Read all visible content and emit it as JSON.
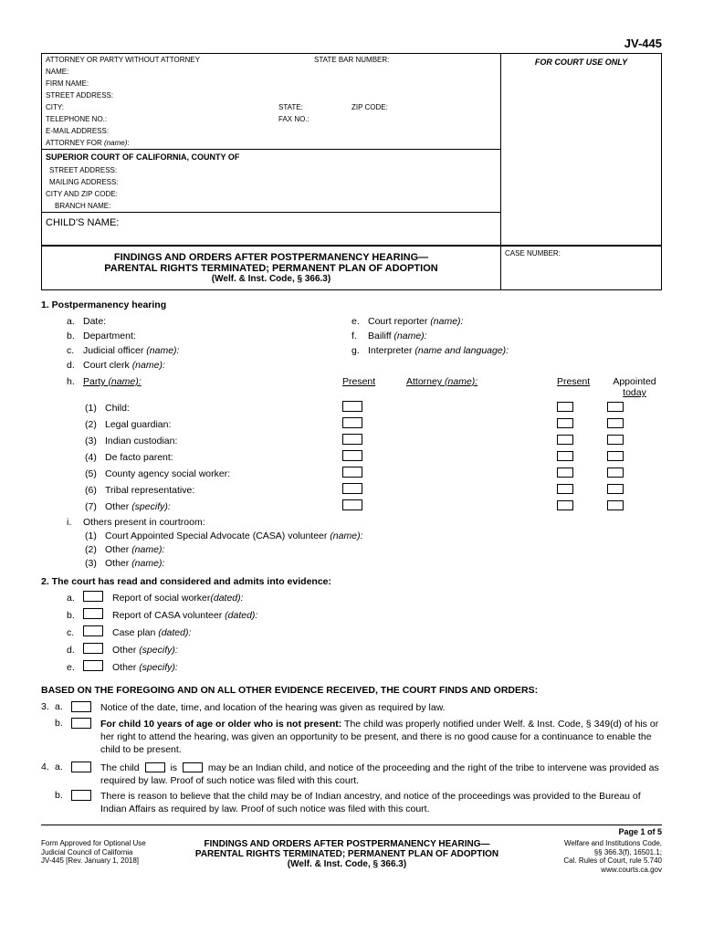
{
  "form_number": "JV-445",
  "header": {
    "attorney_line": "ATTORNEY OR PARTY WITHOUT ATTORNEY",
    "state_bar": "STATE BAR NUMBER:",
    "court_use": "FOR COURT USE ONLY",
    "name": "NAME:",
    "firm": "FIRM NAME:",
    "street": "STREET ADDRESS:",
    "city": "CITY:",
    "state": "STATE:",
    "zip": "ZIP CODE:",
    "tel": "TELEPHONE NO.:",
    "fax": "FAX NO.:",
    "email": "E-MAIL ADDRESS:",
    "attorney_for": "ATTORNEY FOR (name):"
  },
  "court": {
    "header": "SUPERIOR COURT OF CALIFORNIA, COUNTY OF",
    "street": "STREET ADDRESS:",
    "mailing": "MAILING ADDRESS:",
    "cityzip": "CITY AND ZIP CODE:",
    "branch": "BRANCH NAME:"
  },
  "child_name": "CHILD'S NAME:",
  "title": {
    "line1": "FINDINGS AND ORDERS AFTER POSTPERMANENCY HEARING—",
    "line2": "PARENTAL RIGHTS TERMINATED; PERMANENT PLAN OF ADOPTION",
    "line3": "(Welf. & Inst. Code, § 366.3)"
  },
  "case_number": "CASE NUMBER:",
  "section1": {
    "header": "1.   Postpermanency hearing",
    "a": "Date:",
    "b": "Department:",
    "c": "Judicial officer (name):",
    "d": "Court clerk (name):",
    "e": "Court reporter (name):",
    "f": "Bailiff (name):",
    "g": "Interpreter (name and language):",
    "h": "Party (name):",
    "present": "Present",
    "attorney": "Attorney (name):",
    "appointed": "Appointed",
    "today": "today",
    "parties": [
      {
        "num": "(1)",
        "label": "Child:"
      },
      {
        "num": "(2)",
        "label": "Legal guardian:"
      },
      {
        "num": "(3)",
        "label": "Indian custodian:"
      },
      {
        "num": "(4)",
        "label": "De facto parent:"
      },
      {
        "num": "(5)",
        "label": "County agency social worker:"
      },
      {
        "num": "(6)",
        "label": "Tribal representative:"
      },
      {
        "num": "(7)",
        "label": "Other (specify):"
      }
    ],
    "i": "Others present in courtroom:",
    "i1": "Court Appointed Special Advocate (CASA) volunteer (name):",
    "i2": "Other (name):",
    "i3": "Other (name):"
  },
  "section2": {
    "header": "2.   The court has read and considered and admits into evidence:",
    "a": "Report of social worker (dated):",
    "b": "Report of CASA volunteer (dated):",
    "c": "Case plan (dated):",
    "d": "Other (specify):",
    "e": "Other (specify):"
  },
  "foregoing": "BASED ON THE FOREGOING AND ON ALL OTHER EVIDENCE RECEIVED, THE COURT FINDS AND ORDERS:",
  "section3": {
    "a": "Notice of the date, time, and location of the hearing was given as required by law.",
    "b_bold": "For child 10 years of age or older who is not present:",
    "b_text": " The child was properly notified under Welf. & Inst. Code, § 349(d) of his or her right to attend the hearing, was given an opportunity to be present, and there is no good cause for a continuance to enable the child to be present."
  },
  "section4": {
    "a_pre": "The  child",
    "a_is": "is",
    "a_maybe": "may be",
    "a_post": "an Indian child, and notice of the proceeding and the right of the tribe to intervene was provided as required by law. Proof of such notice was filed with this court.",
    "b": "There is reason to believe that the child may be of Indian ancestry, and notice of the proceedings was provided to the Bureau of Indian Affairs as required by law. Proof of such notice was filed with this court."
  },
  "page": "Page 1 of 5",
  "footer": {
    "left1": "Form Approved for Optional Use",
    "left2": "Judicial Council of California",
    "left3": "JV-445 [Rev. January 1, 2018]",
    "center1": "FINDINGS AND ORDERS AFTER POSTPERMANENCY HEARING—",
    "center2": "PARENTAL RIGHTS TERMINATED; PERMANENT PLAN OF ADOPTION",
    "center3": "(Welf. & Inst. Code, § 366.3)",
    "right1": "Welfare and Institutions Code,",
    "right2": "§§ 366.3(f), 16501.1;",
    "right3": "Cal. Rules of Court, rule 5.740",
    "right4": "www.courts.ca.gov"
  }
}
